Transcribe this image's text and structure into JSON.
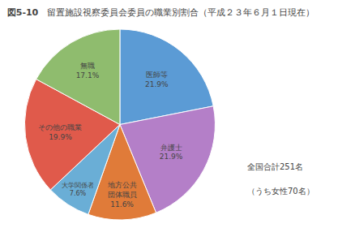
{
  "chart_data": {
    "type": "pie",
    "title": "留置施設視察委員会委員の職業別割合（平成２３年６月１日現在）",
    "subtitle": "図5-10",
    "categories": [
      "医師等",
      "弁護士",
      "地方公共\n団体職員",
      "大学関係者",
      "その他の職業",
      "無職"
    ],
    "values": [
      21.9,
      21.9,
      11.6,
      7.6,
      19.9,
      17.1
    ],
    "value_labels": [
      "21.9%",
      "21.9%",
      "11.6%",
      "7.6%",
      "19.9%",
      "17.1%"
    ],
    "data_labels": true,
    "colors": [
      "#5b9bd5",
      "#b47fc8",
      "#e07b39",
      "#6aaed6",
      "#e05a4b",
      "#8fbc6e"
    ],
    "annotations": [
      "全国合計251名",
      "（うち女性70名）"
    ]
  }
}
